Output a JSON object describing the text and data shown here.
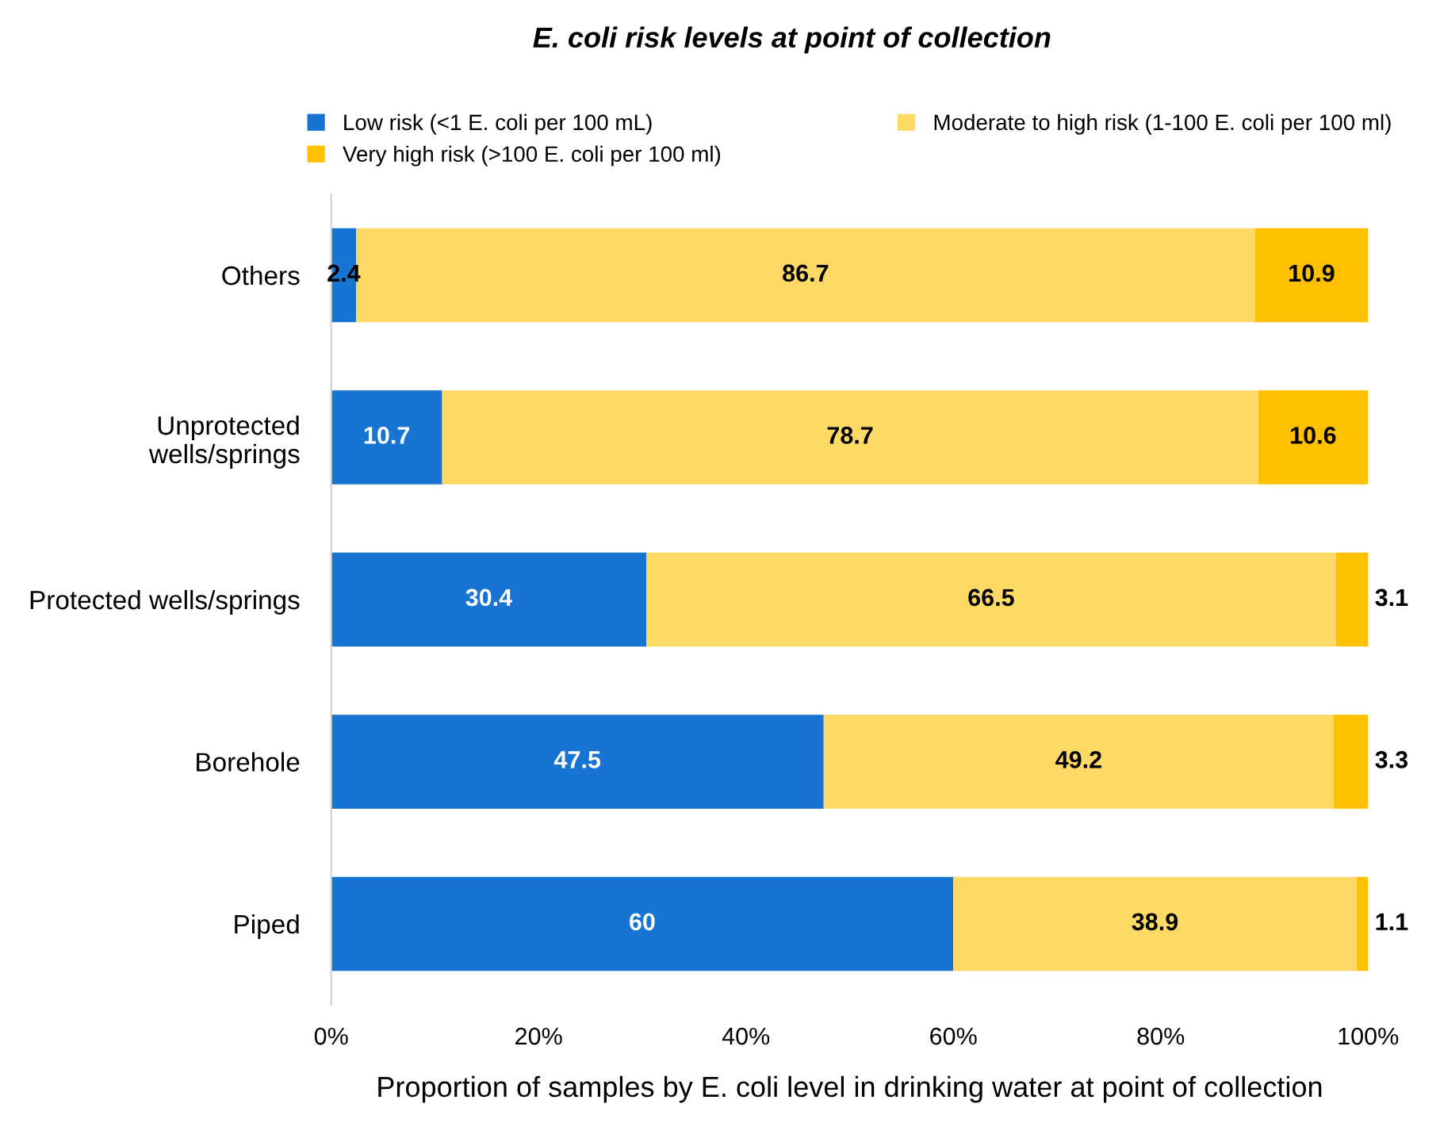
{
  "chart_data": {
    "type": "bar",
    "orientation": "horizontal",
    "stacked": true,
    "title": "E. coli risk levels at point of collection",
    "xlabel": "Proportion of samples by E. coli level in drinking water at point of collection",
    "categories": [
      "Others",
      "Unprotected\nwells/springs",
      "Protected wells/springs",
      "Borehole",
      "Piped"
    ],
    "series": [
      {
        "name": "Low risk (<1 E. coli per 100 mL)",
        "color": "#1874d2",
        "values": [
          2.4,
          10.7,
          30.4,
          47.5,
          60
        ]
      },
      {
        "name": "Moderate to high risk (1-100 E. coli per 100 ml)",
        "color": "#ffd966",
        "values": [
          86.7,
          78.7,
          66.5,
          49.2,
          38.9
        ]
      },
      {
        "name": "Very high risk (>100 E. coli per 100 ml)",
        "color": "#ffc000",
        "values": [
          10.9,
          10.6,
          3.1,
          3.3,
          1.1
        ]
      }
    ],
    "xlim": [
      0,
      100
    ],
    "xticks": [
      {
        "value": 0,
        "label": "0%"
      },
      {
        "value": 20,
        "label": "20%"
      },
      {
        "value": 40,
        "label": "40%"
      },
      {
        "value": 60,
        "label": "60%"
      },
      {
        "value": 80,
        "label": "80%"
      },
      {
        "value": 100,
        "label": "100%"
      }
    ],
    "data_labels": true,
    "legend": "top",
    "grid": false
  }
}
